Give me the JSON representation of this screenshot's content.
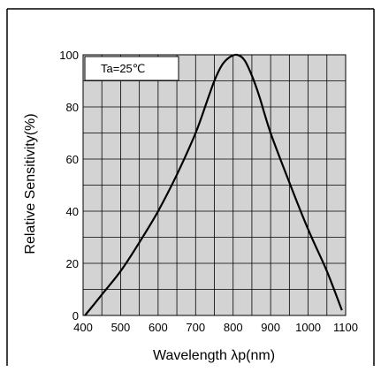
{
  "chart_data": {
    "type": "line",
    "xlabel": "Wavelength λp(nm)",
    "ylabel": "Relative Sensitivity(%)",
    "annotation": "Ta=25℃",
    "xlim": [
      400,
      1100
    ],
    "ylim": [
      0,
      100
    ],
    "x_ticks": [
      400,
      500,
      600,
      700,
      800,
      900,
      1000,
      1100
    ],
    "y_ticks": [
      0,
      20,
      40,
      60,
      80,
      100
    ],
    "grid": true,
    "x_grid_step": 50,
    "y_grid_step": 10,
    "series": [
      {
        "x": [
          405,
          450,
          500,
          550,
          600,
          650,
          700,
          730,
          750,
          770,
          790,
          810,
          830,
          850,
          870,
          900,
          950,
          1000,
          1050,
          1090
        ],
        "y": [
          0,
          8,
          17,
          28,
          40,
          54,
          70,
          82,
          90,
          96,
          99,
          100,
          98,
          92,
          84,
          70,
          51,
          33,
          17,
          2
        ]
      }
    ]
  }
}
